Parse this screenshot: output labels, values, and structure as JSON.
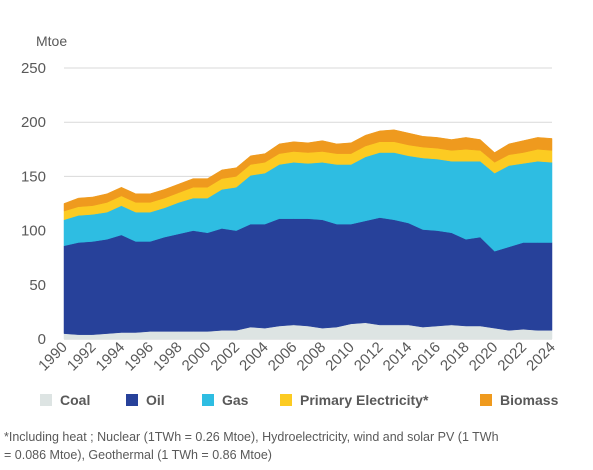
{
  "chart_data": {
    "type": "area",
    "stacked": true,
    "unit_label": "Mtoe",
    "ylim": [
      0,
      250
    ],
    "yticks": [
      0,
      50,
      100,
      150,
      200,
      250
    ],
    "grid": "horizontal",
    "legend_position": "bottom",
    "x": [
      1990,
      1991,
      1992,
      1993,
      1994,
      1995,
      1996,
      1997,
      1998,
      1999,
      2000,
      2001,
      2002,
      2003,
      2004,
      2005,
      2006,
      2007,
      2008,
      2009,
      2010,
      2011,
      2012,
      2013,
      2014,
      2015,
      2016,
      2017,
      2018,
      2019,
      2020,
      2021,
      2022,
      2023,
      2024
    ],
    "xtick_labels": [
      "1990",
      "1992",
      "1994",
      "1996",
      "1998",
      "2000",
      "2002",
      "2004",
      "2006",
      "2008",
      "2010",
      "2012",
      "2014",
      "2016",
      "2018",
      "2020",
      "2022",
      "2024"
    ],
    "series": [
      {
        "name": "Coal",
        "color": "#dde4e3",
        "values": [
          5,
          4,
          4,
          5,
          6,
          6,
          7,
          7,
          7,
          7,
          7,
          8,
          8,
          11,
          10,
          12,
          13,
          12,
          10,
          11,
          14,
          15,
          13,
          13,
          13,
          11,
          12,
          13,
          12,
          12,
          10,
          8,
          9,
          8,
          8
        ]
      },
      {
        "name": "Oil",
        "color": "#27419a",
        "values": [
          81,
          85,
          86,
          87,
          90,
          84,
          83,
          87,
          90,
          93,
          91,
          94,
          92,
          95,
          96,
          99,
          98,
          99,
          100,
          95,
          92,
          94,
          99,
          97,
          94,
          90,
          88,
          85,
          80,
          82,
          71,
          77,
          80,
          81,
          81
        ]
      },
      {
        "name": "Gas",
        "color": "#2ebde2",
        "values": [
          24,
          25,
          25,
          25,
          27,
          27,
          27,
          27,
          29,
          30,
          32,
          36,
          40,
          45,
          47,
          50,
          52,
          51,
          53,
          55,
          55,
          59,
          60,
          62,
          62,
          66,
          66,
          66,
          72,
          70,
          72,
          75,
          73,
          75,
          74
        ]
      },
      {
        "name": "Primary Electricity*",
        "color": "#fccb22",
        "values": [
          8,
          8,
          8,
          9,
          9,
          9,
          9,
          9,
          9,
          10,
          10,
          10,
          10,
          10,
          10,
          10,
          10,
          10,
          10,
          10,
          10,
          10,
          10,
          10,
          10,
          10,
          10,
          10,
          11,
          10,
          10,
          10,
          10,
          11,
          11
        ]
      },
      {
        "name": "Biomass",
        "color": "#ef9a1e",
        "values": [
          7,
          8,
          8,
          8,
          8,
          8,
          8,
          8,
          8,
          8,
          8,
          8,
          8,
          8,
          8,
          9,
          9,
          9,
          10,
          9,
          10,
          10,
          10,
          11,
          11,
          10,
          10,
          10,
          11,
          10,
          9,
          10,
          11,
          11,
          11
        ]
      }
    ]
  },
  "footnote": {
    "line1": "*Including heat ; Nuclear (1TWh = 0.26 Mtoe), Hydroelectricity, wind and solar PV (1 TWh",
    "line2": "= 0.086 Mtoe), Geothermal (1 TWh = 0.86 Mtoe)"
  }
}
